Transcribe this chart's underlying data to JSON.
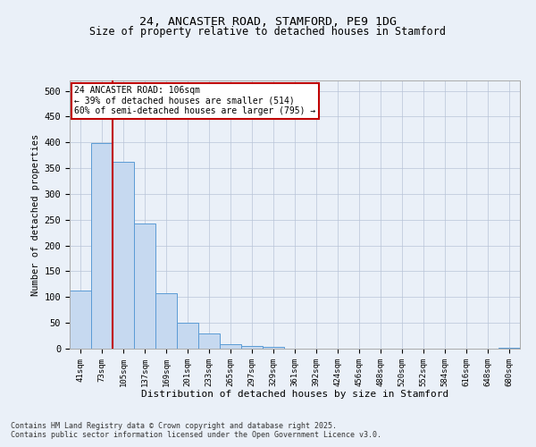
{
  "title1": "24, ANCASTER ROAD, STAMFORD, PE9 1DG",
  "title2": "Size of property relative to detached houses in Stamford",
  "xlabel": "Distribution of detached houses by size in Stamford",
  "ylabel": "Number of detached properties",
  "categories": [
    "41sqm",
    "73sqm",
    "105sqm",
    "137sqm",
    "169sqm",
    "201sqm",
    "233sqm",
    "265sqm",
    "297sqm",
    "329sqm",
    "361sqm",
    "392sqm",
    "424sqm",
    "456sqm",
    "488sqm",
    "520sqm",
    "552sqm",
    "584sqm",
    "616sqm",
    "648sqm",
    "680sqm"
  ],
  "values": [
    112,
    398,
    362,
    243,
    107,
    50,
    30,
    8,
    6,
    4,
    0,
    0,
    0,
    0,
    0,
    0,
    0,
    0,
    0,
    0,
    1
  ],
  "bar_color": "#c6d9f0",
  "bar_edge_color": "#5b9bd5",
  "vline_x_index": 2,
  "vline_color": "#c00000",
  "annotation_text": "24 ANCASTER ROAD: 106sqm\n← 39% of detached houses are smaller (514)\n60% of semi-detached houses are larger (795) →",
  "annotation_box_color": "#ffffff",
  "annotation_box_edge_color": "#c00000",
  "footer1": "Contains HM Land Registry data © Crown copyright and database right 2025.",
  "footer2": "Contains public sector information licensed under the Open Government Licence v3.0.",
  "bg_color": "#eaf0f8",
  "ylim": [
    0,
    520
  ],
  "yticks": [
    0,
    50,
    100,
    150,
    200,
    250,
    300,
    350,
    400,
    450,
    500
  ]
}
